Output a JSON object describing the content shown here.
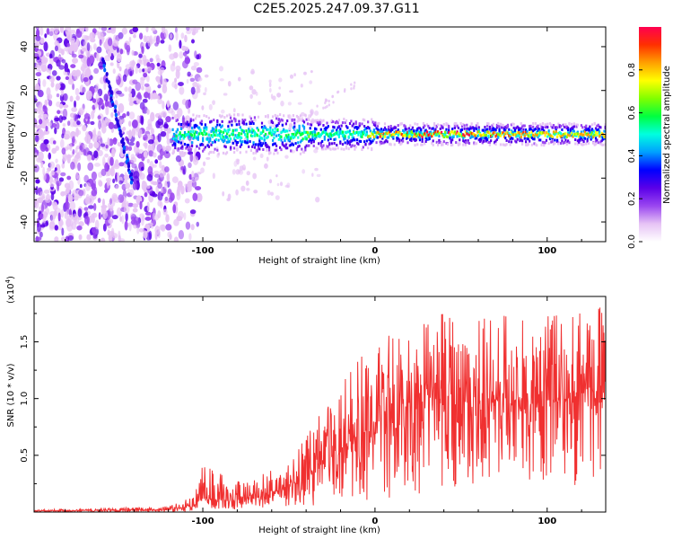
{
  "title": "C2E5.2025.247.09.37.G11",
  "colors": {
    "snr_line": "#f03030",
    "axis": "#000000",
    "background": "#ffffff"
  },
  "chart_data": [
    {
      "type": "heatmap",
      "name": "spectrogram",
      "xlabel": "Height of straight line (km)",
      "ylabel": "Frequency (Hz)",
      "xlim": [
        -198,
        134
      ],
      "ylim": [
        -49,
        49
      ],
      "xticks": [
        -100,
        0,
        100
      ],
      "xtick_labels": [
        "-100",
        "0",
        "100"
      ],
      "yticks": [
        -40,
        -20,
        0,
        20,
        40
      ],
      "ytick_labels": [
        "-40",
        "-20",
        "0",
        "20",
        "40"
      ],
      "colorbar": {
        "label": "Normalized spectral amplitude",
        "range": [
          0,
          1
        ],
        "ticks": [
          0,
          0.2,
          0.4,
          0.6,
          0.8
        ],
        "tick_labels": [
          "0.0",
          "0.2",
          "0.4",
          "0.6",
          "0.8"
        ],
        "colormap": [
          "#ffffff",
          "#e6c3f5",
          "#9a46f0",
          "#5a00e8",
          "#0000ff",
          "#00a0ff",
          "#00ffe0",
          "#00ff40",
          "#80ff00",
          "#ffff00",
          "#ffa000",
          "#ff3000",
          "#ff0050"
        ]
      },
      "features": {
        "noise_region_x": [
          -198,
          -108
        ],
        "signal_ridge_x": [
          -118,
          134
        ],
        "signal_frequency_hz": 0,
        "diagonal_streak": {
          "x": [
            -158,
            -141
          ],
          "y": [
            34,
            -22
          ]
        }
      }
    },
    {
      "type": "line",
      "name": "snr",
      "xlabel": "Height of straight line (km)",
      "ylabel": "SNR (10 * v/v)",
      "multiplier_label": "(x10",
      "multiplier_exponent": "4",
      "multiplier_close": ")",
      "xlim": [
        -198,
        134
      ],
      "ylim": [
        0,
        1.9
      ],
      "xticks": [
        -100,
        0,
        100
      ],
      "xtick_labels": [
        "-100",
        "0",
        "100"
      ],
      "yticks": [
        0.5,
        1.0,
        1.5
      ],
      "ytick_labels": [
        "0.5",
        "1.0",
        "1.5"
      ],
      "series": [
        {
          "name": "SNR",
          "x": [
            -198,
            -160,
            -120,
            -105,
            -100,
            -80,
            -60,
            -40,
            -20,
            0,
            20,
            40,
            60,
            80,
            100,
            120,
            134
          ],
          "upper": [
            0.02,
            0.03,
            0.05,
            0.14,
            0.42,
            0.28,
            0.38,
            0.68,
            1.12,
            1.55,
            1.68,
            1.78,
            1.72,
            1.75,
            1.75,
            1.85,
            1.85
          ],
          "lower": [
            0.0,
            0.0,
            0.0,
            0.0,
            0.02,
            0.02,
            0.03,
            0.05,
            0.08,
            0.1,
            0.15,
            0.2,
            0.2,
            0.25,
            0.25,
            0.15,
            0.3
          ],
          "center": [
            0.01,
            0.015,
            0.02,
            0.05,
            0.12,
            0.1,
            0.16,
            0.32,
            0.55,
            0.78,
            0.95,
            1.0,
            0.95,
            1.0,
            0.95,
            1.05,
            1.0
          ]
        }
      ]
    }
  ]
}
